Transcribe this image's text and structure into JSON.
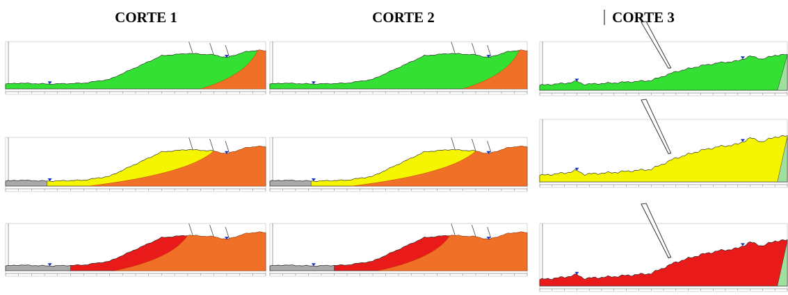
{
  "header": {
    "titles": [
      "CORTE 1",
      "CORTE 2",
      "CORTE 3"
    ]
  }
}
